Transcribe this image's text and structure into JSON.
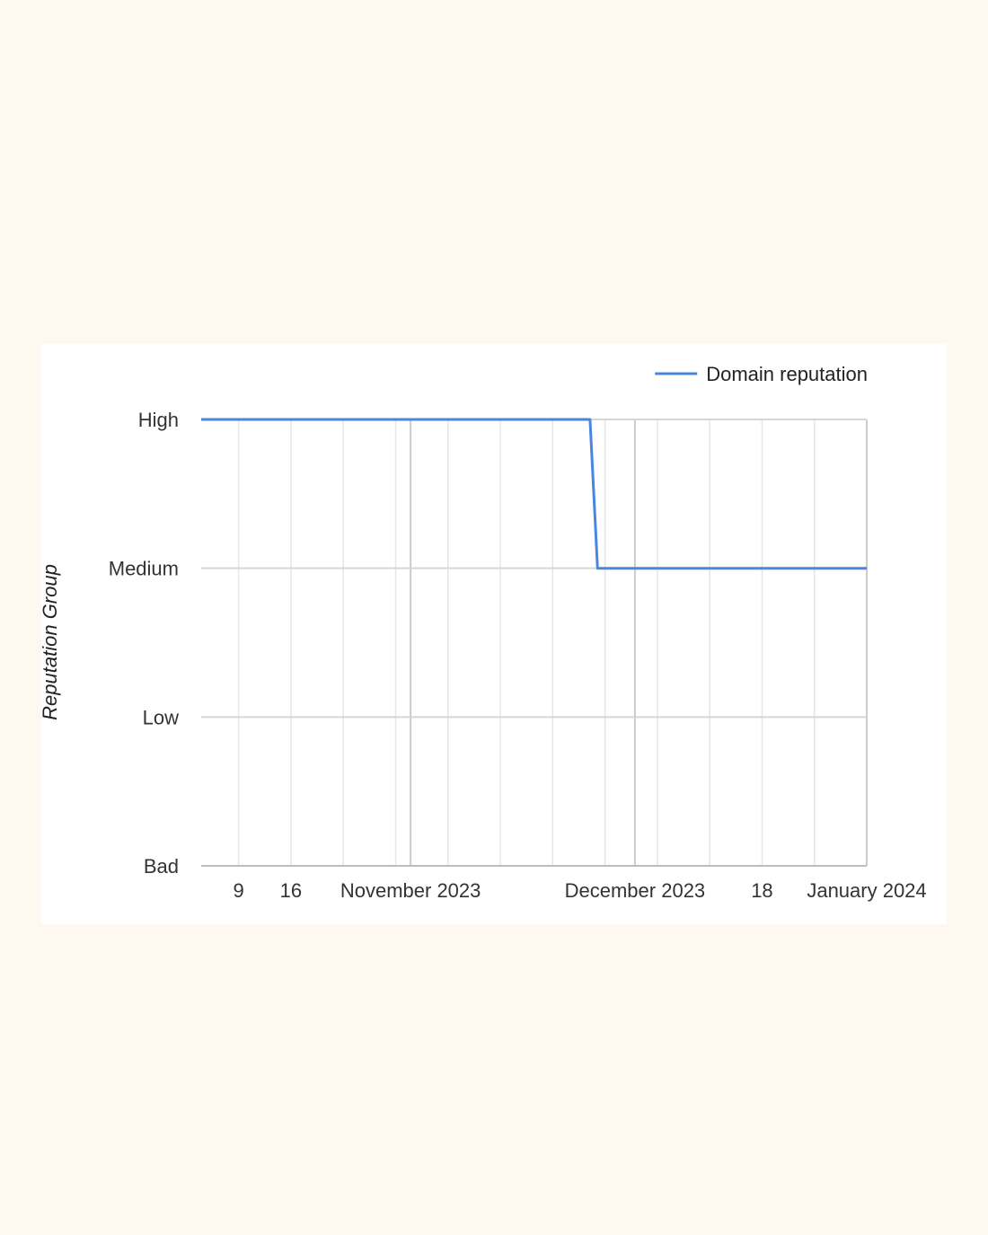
{
  "chart_data": {
    "type": "line",
    "ylabel": "Reputation Group",
    "y_categories": [
      "Bad",
      "Low",
      "Medium",
      "High"
    ],
    "x_range": [
      "2023-10-04",
      "2024-01-01"
    ],
    "x_major_ticks": [
      {
        "date": "2023-11-01",
        "label": "November 2023"
      },
      {
        "date": "2023-12-01",
        "label": "December 2023"
      },
      {
        "date": "2024-01-01",
        "label": "January 2024"
      }
    ],
    "x_minor_ticks": [
      {
        "date": "2023-10-09",
        "label": "9"
      },
      {
        "date": "2023-10-16",
        "label": "16"
      },
      {
        "date": "2023-10-23",
        "label": ""
      },
      {
        "date": "2023-10-30",
        "label": ""
      },
      {
        "date": "2023-11-06",
        "label": ""
      },
      {
        "date": "2023-11-13",
        "label": ""
      },
      {
        "date": "2023-11-20",
        "label": ""
      },
      {
        "date": "2023-11-27",
        "label": ""
      },
      {
        "date": "2023-12-04",
        "label": ""
      },
      {
        "date": "2023-12-11",
        "label": ""
      },
      {
        "date": "2023-12-18",
        "label": "18"
      },
      {
        "date": "2023-12-25",
        "label": ""
      }
    ],
    "grid": true,
    "legend_position": "top-right",
    "series": [
      {
        "name": "Domain reputation",
        "color": "#4a86e0",
        "points": [
          {
            "x": "2023-10-04",
            "y": "High"
          },
          {
            "x": "2023-11-25",
            "y": "High"
          },
          {
            "x": "2023-11-26",
            "y": "Medium"
          },
          {
            "x": "2024-01-01",
            "y": "Medium"
          }
        ]
      }
    ]
  }
}
